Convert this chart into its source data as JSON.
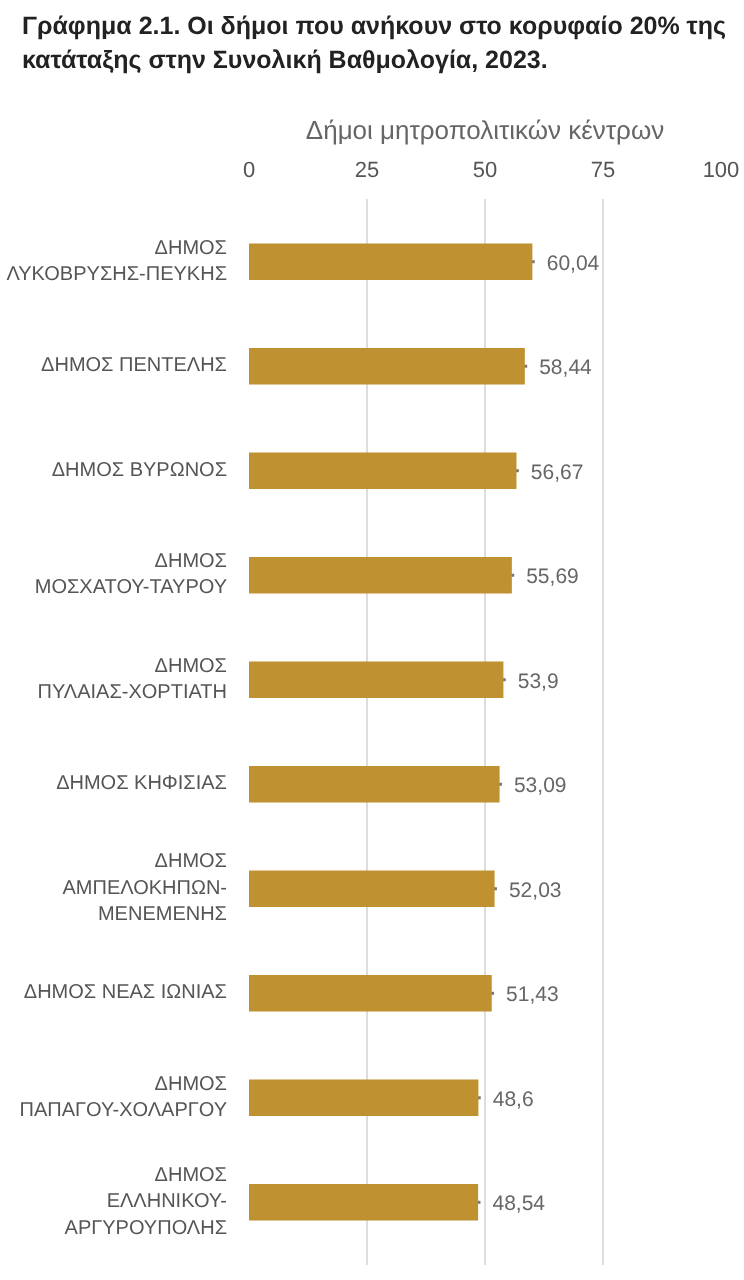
{
  "chart_data": {
    "type": "bar",
    "orientation": "horizontal",
    "title": "Γράφημα 2.1. Οι δήμοι που ανήκουν στο κορυφαίο 20% της κατάταξης στην Συνολική Βαθμολογία, 2023.",
    "subtitle": "Δήμοι μητροπολιτικών κέντρων",
    "categories": [
      "ΔΗΜΟΣ ΛΥΚΟΒΡΥΣΗΣ-ΠΕΥΚΗΣ",
      "ΔΗΜΟΣ ΠΕΝΤΕΛΗΣ",
      "ΔΗΜΟΣ ΒΥΡΩΝΟΣ",
      "ΔΗΜΟΣ ΜΟΣΧΑΤΟΥ-ΤΑΥΡΟΥ",
      "ΔΗΜΟΣ ΠΥΛΑΙΑΣ-ΧΟΡΤΙΑΤΗ",
      "ΔΗΜΟΣ ΚΗΦΙΣΙΑΣ",
      "ΔΗΜΟΣ ΑΜΠΕΛΟΚΗΠΩΝ-ΜΕΝΕΜΕΝΗΣ",
      "ΔΗΜΟΣ ΝΕΑΣ ΙΩΝΙΑΣ",
      "ΔΗΜΟΣ ΠΑΠΑΓΟΥ-ΧΟΛΑΡΓΟΥ",
      "ΔΗΜΟΣ ΕΛΛΗΝΙΚΟΥ-ΑΡΓΥΡΟΥΠΟΛΗΣ"
    ],
    "values": [
      60.04,
      58.44,
      56.67,
      55.69,
      53.9,
      53.09,
      52.03,
      51.43,
      48.6,
      48.54
    ],
    "value_labels": [
      "60,04",
      "58,44",
      "56,67",
      "55,69",
      "53,9",
      "53,09",
      "52,03",
      "51,43",
      "48,6",
      "48,54"
    ],
    "errors": [
      0.5,
      0.5,
      0.5,
      0.5,
      0.5,
      0.5,
      0.5,
      0.5,
      0.5,
      0.5
    ],
    "color": "#bf9130",
    "xlim": [
      0,
      100
    ],
    "xticks": [
      0,
      25,
      50,
      75,
      100
    ],
    "grid": "x"
  }
}
